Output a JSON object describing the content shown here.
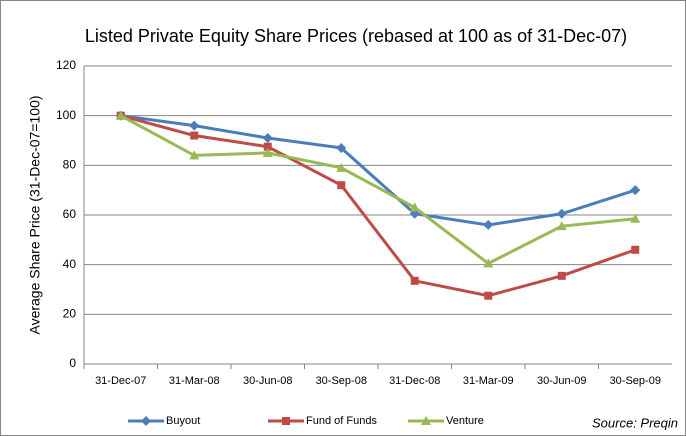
{
  "chart_data": {
    "type": "line",
    "title": "Listed Private Equity Share Prices (rebased at 100 as of 31-Dec-07)",
    "y_label": "Average Share Price (31-Dec-07=100)",
    "annotation": "Source: Preqin",
    "categories": [
      "31-Dec-07",
      "31-Mar-08",
      "30-Jun-08",
      "30-Sep-08",
      "31-Dec-08",
      "31-Mar-09",
      "30-Jun-09",
      "30-Sep-09"
    ],
    "series": [
      {
        "name": "Buyout",
        "color": "#4a7ebb",
        "marker": "diamond",
        "values": [
          100,
          96,
          91,
          87,
          60.5,
          56,
          60.5,
          70
        ]
      },
      {
        "name": "Fund of Funds",
        "color": "#be4b48",
        "marker": "square",
        "values": [
          100,
          92,
          87.5,
          72,
          33.5,
          27.5,
          35.5,
          46
        ]
      },
      {
        "name": "Venture",
        "color": "#98b954",
        "marker": "triangle",
        "values": [
          100,
          84,
          85,
          79,
          63,
          40.5,
          55.5,
          58.5
        ]
      }
    ],
    "ylim": [
      0,
      120
    ],
    "yticks": [
      0,
      20,
      40,
      60,
      80,
      100,
      120
    ],
    "grid": true,
    "legend": "bottom"
  }
}
